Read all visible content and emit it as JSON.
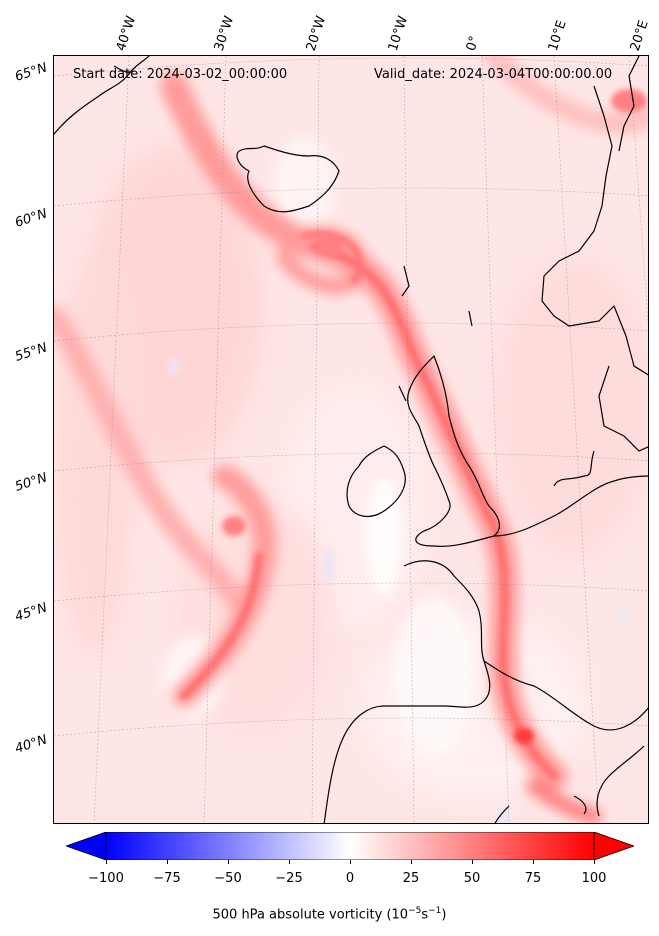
{
  "map": {
    "start_date": "Start date: 2024-03-02_00:00:00",
    "valid_date": "Valid_date: 2024-03-04T00:00:00.00",
    "longitude_labels": [
      "40°W",
      "30°W",
      "20°W",
      "10°W",
      "0°",
      "10°E",
      "20°E"
    ],
    "latitude_labels": [
      "65°N",
      "60°N",
      "55°N",
      "50°N",
      "45°N",
      "40°N"
    ],
    "field": "500 hPa absolute vorticity",
    "colormap": "bwr",
    "colors": {
      "negative": "#0000ff",
      "zero": "#ffffff",
      "positive": "#ff0000",
      "coastline": "#000000"
    }
  },
  "colorbar": {
    "min": -100,
    "max": 100,
    "ticks": [
      "−100",
      "−75",
      "−50",
      "−25",
      "0",
      "25",
      "50",
      "75",
      "100"
    ],
    "extend": "both",
    "label_main": "500 hPa absolute vorticity (10",
    "label_exp1": "−5",
    "label_mid": "s",
    "label_exp2": "−1",
    "label_end": ")"
  }
}
